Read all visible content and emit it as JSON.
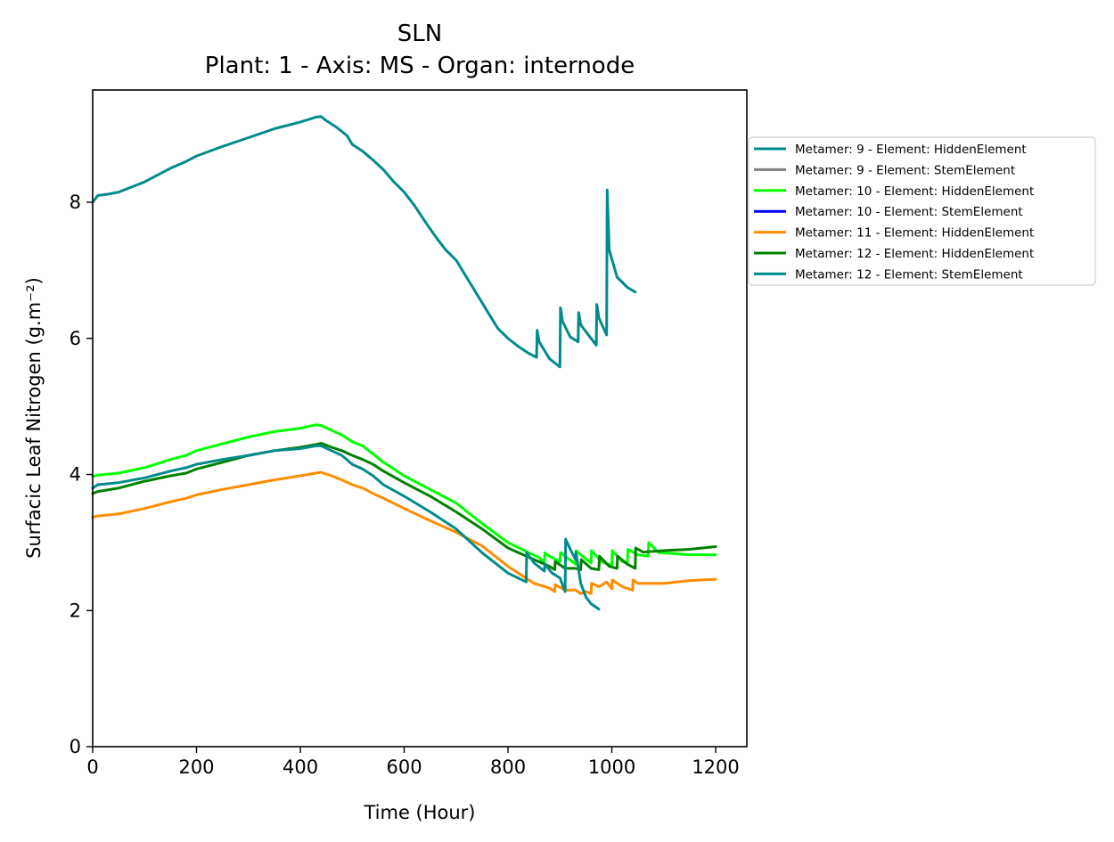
{
  "chart_data": {
    "type": "line",
    "title": "SLN",
    "subtitle": "Plant: 1 - Axis: MS - Organ: internode",
    "xlabel": "Time (Hour)",
    "ylabel": "Surfacic Leaf Nitrogen (g.m⁻²)",
    "xlim": [
      0,
      1260
    ],
    "ylim": [
      0,
      9.65
    ],
    "xticks": [
      "0",
      "200",
      "400",
      "600",
      "800",
      "1000",
      "1200"
    ],
    "yticks": [
      "0",
      "2",
      "4",
      "6",
      "8"
    ],
    "grid": false,
    "legend_position": "outside-right",
    "series": [
      {
        "name": "Metamer: 9 - Element: HiddenElement",
        "color": "#008b8b",
        "x": [
          0,
          10,
          30,
          50,
          100,
          150,
          180,
          200,
          250,
          300,
          350,
          400,
          430,
          440,
          450,
          470,
          490,
          500,
          520,
          540,
          560,
          580,
          600,
          620,
          640,
          660,
          680,
          700,
          720,
          740,
          760,
          780,
          800,
          820,
          840,
          855,
          856,
          860,
          880,
          900,
          901,
          905,
          920,
          935,
          936,
          940,
          960,
          970,
          971,
          975,
          990,
          991,
          995,
          1010,
          1030,
          1045
        ],
        "y": [
          8.0,
          8.1,
          8.12,
          8.15,
          8.3,
          8.5,
          8.6,
          8.68,
          8.82,
          8.95,
          9.08,
          9.18,
          9.25,
          9.26,
          9.2,
          9.1,
          8.98,
          8.85,
          8.75,
          8.62,
          8.48,
          8.3,
          8.15,
          7.95,
          7.72,
          7.5,
          7.3,
          7.15,
          6.9,
          6.65,
          6.4,
          6.15,
          6.0,
          5.88,
          5.78,
          5.72,
          6.12,
          5.95,
          5.7,
          5.58,
          6.45,
          6.25,
          6.02,
          5.95,
          6.38,
          6.2,
          6.0,
          5.9,
          6.5,
          6.3,
          6.05,
          8.18,
          7.3,
          6.9,
          6.75,
          6.68
        ]
      },
      {
        "name": "Metamer: 9 - Element: StemElement",
        "color": "#808080",
        "x": [],
        "y": []
      },
      {
        "name": "Metamer: 10 - Element: HiddenElement",
        "color": "#00ff00",
        "x": [
          0,
          10,
          50,
          100,
          150,
          180,
          200,
          250,
          300,
          350,
          400,
          430,
          440,
          460,
          480,
          500,
          520,
          540,
          560,
          600,
          650,
          700,
          750,
          800,
          840,
          860,
          870,
          871,
          880,
          900,
          901,
          910,
          930,
          931,
          940,
          960,
          961,
          980,
          1000,
          1001,
          1020,
          1030,
          1031,
          1050,
          1070,
          1071,
          1090,
          1150,
          1200
        ],
        "y": [
          3.97,
          3.99,
          4.02,
          4.1,
          4.22,
          4.28,
          4.35,
          4.45,
          4.55,
          4.63,
          4.68,
          4.73,
          4.72,
          4.65,
          4.58,
          4.48,
          4.42,
          4.3,
          4.18,
          3.98,
          3.78,
          3.58,
          3.28,
          3.0,
          2.85,
          2.78,
          2.7,
          2.85,
          2.8,
          2.72,
          2.85,
          2.8,
          2.68,
          2.88,
          2.82,
          2.7,
          2.88,
          2.72,
          2.66,
          2.88,
          2.72,
          2.7,
          2.9,
          2.82,
          2.8,
          3.0,
          2.85,
          2.82,
          2.82
        ]
      },
      {
        "name": "Metamer: 10 - Element: StemElement",
        "color": "#0000ff",
        "x": [],
        "y": []
      },
      {
        "name": "Metamer: 11 - Element: HiddenElement",
        "color": "#ff8c00",
        "x": [
          0,
          10,
          50,
          100,
          150,
          180,
          200,
          250,
          300,
          350,
          400,
          430,
          440,
          460,
          480,
          500,
          520,
          540,
          560,
          600,
          650,
          700,
          750,
          800,
          850,
          880,
          890,
          891,
          910,
          930,
          940,
          950,
          960,
          961,
          975,
          990,
          1000,
          1001,
          1020,
          1040,
          1041,
          1050,
          1100,
          1150,
          1200
        ],
        "y": [
          3.37,
          3.39,
          3.42,
          3.5,
          3.6,
          3.65,
          3.7,
          3.78,
          3.85,
          3.92,
          3.98,
          4.02,
          4.03,
          3.98,
          3.92,
          3.85,
          3.8,
          3.72,
          3.65,
          3.5,
          3.32,
          3.15,
          2.95,
          2.65,
          2.4,
          2.33,
          2.28,
          2.38,
          2.3,
          2.3,
          2.25,
          2.28,
          2.25,
          2.4,
          2.35,
          2.42,
          2.32,
          2.45,
          2.35,
          2.3,
          2.45,
          2.4,
          2.4,
          2.44,
          2.46
        ]
      },
      {
        "name": "Metamer: 12 - Element: HiddenElement",
        "color": "#008000",
        "x": [
          0,
          10,
          50,
          100,
          150,
          180,
          200,
          250,
          300,
          350,
          400,
          430,
          440,
          460,
          480,
          500,
          520,
          540,
          560,
          600,
          650,
          700,
          750,
          800,
          850,
          880,
          890,
          891,
          910,
          930,
          940,
          941,
          960,
          975,
          976,
          995,
          1010,
          1011,
          1030,
          1045,
          1046,
          1060,
          1100,
          1150,
          1200
        ],
        "y": [
          3.72,
          3.75,
          3.8,
          3.9,
          3.98,
          4.02,
          4.08,
          4.18,
          4.28,
          4.35,
          4.4,
          4.44,
          4.46,
          4.4,
          4.35,
          4.28,
          4.22,
          4.15,
          4.05,
          3.88,
          3.68,
          3.45,
          3.2,
          2.92,
          2.75,
          2.65,
          2.6,
          2.72,
          2.62,
          2.62,
          2.6,
          2.75,
          2.62,
          2.6,
          2.8,
          2.65,
          2.62,
          2.8,
          2.68,
          2.62,
          2.92,
          2.86,
          2.88,
          2.9,
          2.94
        ]
      },
      {
        "name": "Metamer: 12 - Element: StemElement",
        "color": "#008b8b",
        "x": [
          0,
          10,
          50,
          100,
          150,
          180,
          200,
          250,
          300,
          350,
          400,
          430,
          440,
          460,
          480,
          500,
          520,
          540,
          560,
          600,
          650,
          700,
          750,
          800,
          835,
          836,
          850,
          870,
          871,
          885,
          900,
          910,
          911,
          920,
          930,
          931,
          940,
          950,
          960,
          975
        ],
        "y": [
          3.8,
          3.85,
          3.88,
          3.95,
          4.05,
          4.1,
          4.15,
          4.22,
          4.28,
          4.35,
          4.38,
          4.42,
          4.42,
          4.35,
          4.28,
          4.15,
          4.08,
          3.98,
          3.85,
          3.68,
          3.45,
          3.2,
          2.85,
          2.55,
          2.42,
          2.85,
          2.7,
          2.58,
          2.68,
          2.55,
          2.48,
          2.28,
          3.05,
          2.9,
          2.75,
          2.85,
          2.4,
          2.2,
          2.1,
          2.02
        ]
      }
    ]
  }
}
